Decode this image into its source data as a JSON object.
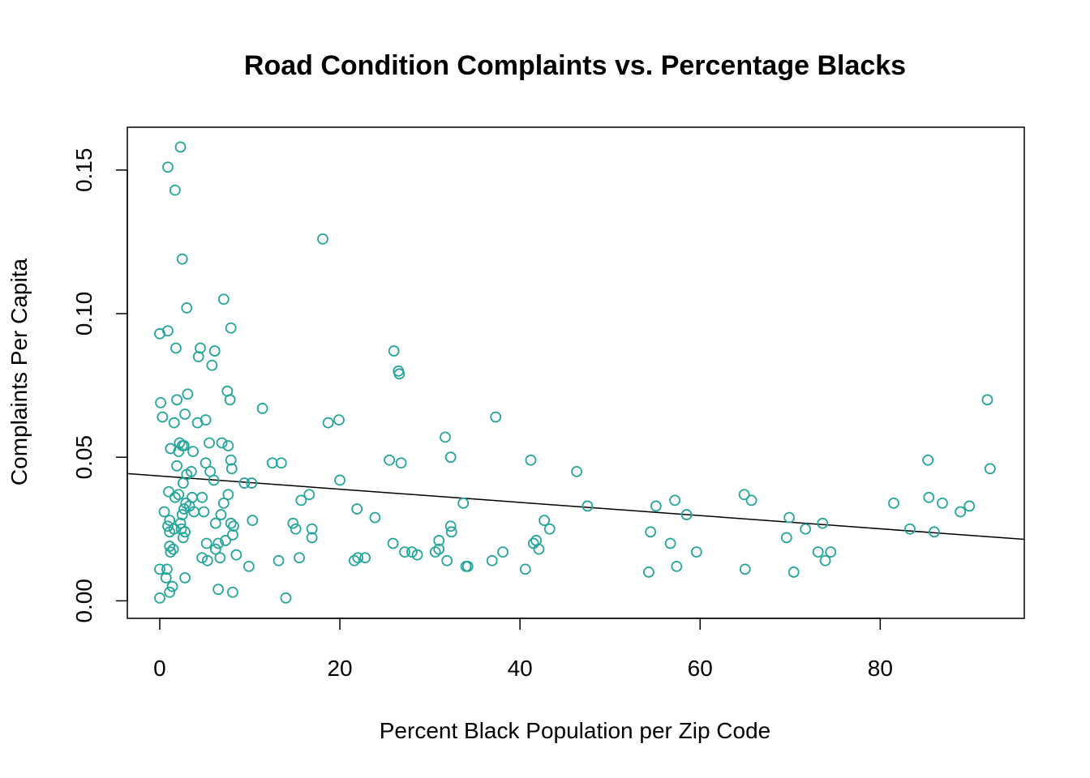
{
  "chart_data": {
    "type": "scatter",
    "title": "Road Condition Complaints vs. Percentage Blacks",
    "xlabel": "Percent Black Population per Zip Code",
    "ylabel": "Complaints Per Capita",
    "xlim": [
      -3.6,
      96.0
    ],
    "ylim": [
      -0.0061,
      0.1649
    ],
    "x_ticks": [
      0,
      20,
      40,
      60,
      80
    ],
    "x_tick_labels": [
      "0",
      "20",
      "40",
      "60",
      "80"
    ],
    "y_ticks": [
      0.0,
      0.05,
      0.1,
      0.15
    ],
    "y_tick_labels": [
      "0.00",
      "0.05",
      "0.10",
      "0.15"
    ],
    "point_color": "#26a69a",
    "line_color": "#000000",
    "grid": false,
    "regression_line": {
      "x": [
        -3.6,
        96.0
      ],
      "y": [
        0.0443,
        0.0214
      ]
    },
    "points": [
      [
        2.3,
        0.158
      ],
      [
        0.9,
        0.151
      ],
      [
        1.7,
        0.143
      ],
      [
        2.5,
        0.119
      ],
      [
        3.0,
        0.102
      ],
      [
        0.0,
        0.093
      ],
      [
        0.9,
        0.094
      ],
      [
        1.8,
        0.088
      ],
      [
        0.1,
        0.069
      ],
      [
        0.3,
        0.064
      ],
      [
        1.9,
        0.07
      ],
      [
        3.1,
        0.072
      ],
      [
        2.8,
        0.065
      ],
      [
        1.6,
        0.062
      ],
      [
        2.2,
        0.055
      ],
      [
        2.5,
        0.054
      ],
      [
        1.2,
        0.053
      ],
      [
        2.1,
        0.052
      ],
      [
        2.7,
        0.054
      ],
      [
        1.9,
        0.047
      ],
      [
        3.0,
        0.044
      ],
      [
        2.6,
        0.041
      ],
      [
        1.0,
        0.038
      ],
      [
        1.7,
        0.036
      ],
      [
        2.1,
        0.037
      ],
      [
        2.9,
        0.034
      ],
      [
        2.7,
        0.032
      ],
      [
        2.5,
        0.03
      ],
      [
        2.3,
        0.027
      ],
      [
        2.4,
        0.025
      ],
      [
        2.8,
        0.024
      ],
      [
        2.6,
        0.022
      ],
      [
        0.5,
        0.031
      ],
      [
        1.1,
        0.028
      ],
      [
        0.9,
        0.026
      ],
      [
        1.1,
        0.024
      ],
      [
        1.6,
        0.025
      ],
      [
        1.5,
        0.018
      ],
      [
        1.2,
        0.017
      ],
      [
        1.1,
        0.019
      ],
      [
        0.0,
        0.011
      ],
      [
        0.8,
        0.011
      ],
      [
        0.7,
        0.008
      ],
      [
        1.4,
        0.005
      ],
      [
        1.1,
        0.003
      ],
      [
        0.0,
        0.001
      ],
      [
        2.8,
        0.008
      ],
      [
        3.3,
        0.033
      ],
      [
        3.6,
        0.036
      ],
      [
        3.8,
        0.031
      ],
      [
        3.5,
        0.045
      ],
      [
        3.7,
        0.052
      ],
      [
        4.2,
        0.062
      ],
      [
        4.3,
        0.085
      ],
      [
        4.5,
        0.088
      ],
      [
        4.7,
        0.036
      ],
      [
        5.1,
        0.063
      ],
      [
        5.5,
        0.055
      ],
      [
        5.6,
        0.045
      ],
      [
        5.1,
        0.048
      ],
      [
        6.0,
        0.042
      ],
      [
        5.8,
        0.082
      ],
      [
        6.1,
        0.087
      ],
      [
        6.9,
        0.055
      ],
      [
        7.1,
        0.105
      ],
      [
        7.5,
        0.073
      ],
      [
        7.8,
        0.07
      ],
      [
        7.9,
        0.095
      ],
      [
        7.6,
        0.054
      ],
      [
        7.9,
        0.049
      ],
      [
        8.0,
        0.046
      ],
      [
        7.6,
        0.037
      ],
      [
        7.1,
        0.034
      ],
      [
        6.8,
        0.03
      ],
      [
        6.2,
        0.027
      ],
      [
        4.9,
        0.031
      ],
      [
        4.7,
        0.015
      ],
      [
        5.3,
        0.014
      ],
      [
        6.2,
        0.018
      ],
      [
        6.5,
        0.02
      ],
      [
        5.2,
        0.02
      ],
      [
        6.7,
        0.015
      ],
      [
        7.3,
        0.021
      ],
      [
        7.9,
        0.027
      ],
      [
        8.1,
        0.023
      ],
      [
        8.2,
        0.026
      ],
      [
        8.5,
        0.016
      ],
      [
        6.5,
        0.004
      ],
      [
        8.1,
        0.003
      ],
      [
        9.4,
        0.041
      ],
      [
        10.2,
        0.041
      ],
      [
        10.3,
        0.028
      ],
      [
        9.9,
        0.012
      ],
      [
        11.4,
        0.067
      ],
      [
        12.5,
        0.048
      ],
      [
        13.5,
        0.048
      ],
      [
        13.2,
        0.014
      ],
      [
        14.0,
        0.001
      ],
      [
        14.8,
        0.027
      ],
      [
        15.1,
        0.025
      ],
      [
        15.5,
        0.015
      ],
      [
        15.7,
        0.035
      ],
      [
        16.6,
        0.037
      ],
      [
        16.9,
        0.025
      ],
      [
        16.9,
        0.022
      ],
      [
        18.1,
        0.126
      ],
      [
        18.7,
        0.062
      ],
      [
        19.9,
        0.063
      ],
      [
        20.0,
        0.042
      ],
      [
        21.6,
        0.014
      ],
      [
        21.9,
        0.032
      ],
      [
        22.0,
        0.015
      ],
      [
        22.8,
        0.015
      ],
      [
        23.9,
        0.029
      ],
      [
        25.5,
        0.049
      ],
      [
        26.0,
        0.087
      ],
      [
        26.5,
        0.08
      ],
      [
        26.6,
        0.079
      ],
      [
        26.8,
        0.048
      ],
      [
        25.9,
        0.02
      ],
      [
        27.2,
        0.017
      ],
      [
        28.0,
        0.017
      ],
      [
        28.6,
        0.016
      ],
      [
        30.6,
        0.017
      ],
      [
        31.0,
        0.018
      ],
      [
        31.0,
        0.021
      ],
      [
        31.7,
        0.057
      ],
      [
        32.3,
        0.05
      ],
      [
        32.3,
        0.026
      ],
      [
        32.4,
        0.024
      ],
      [
        31.9,
        0.014
      ],
      [
        33.7,
        0.034
      ],
      [
        34.0,
        0.012
      ],
      [
        34.2,
        0.012
      ],
      [
        36.9,
        0.014
      ],
      [
        37.3,
        0.064
      ],
      [
        38.1,
        0.017
      ],
      [
        40.6,
        0.011
      ],
      [
        41.2,
        0.049
      ],
      [
        41.5,
        0.02
      ],
      [
        41.8,
        0.021
      ],
      [
        42.1,
        0.018
      ],
      [
        42.7,
        0.028
      ],
      [
        43.3,
        0.025
      ],
      [
        46.3,
        0.045
      ],
      [
        47.5,
        0.033
      ],
      [
        54.3,
        0.01
      ],
      [
        54.5,
        0.024
      ],
      [
        55.1,
        0.033
      ],
      [
        56.7,
        0.02
      ],
      [
        57.2,
        0.035
      ],
      [
        57.4,
        0.012
      ],
      [
        58.5,
        0.03
      ],
      [
        59.6,
        0.017
      ],
      [
        64.9,
        0.037
      ],
      [
        65.0,
        0.011
      ],
      [
        65.7,
        0.035
      ],
      [
        69.6,
        0.022
      ],
      [
        69.9,
        0.029
      ],
      [
        70.4,
        0.01
      ],
      [
        71.7,
        0.025
      ],
      [
        73.1,
        0.017
      ],
      [
        73.6,
        0.027
      ],
      [
        73.9,
        0.014
      ],
      [
        74.5,
        0.017
      ],
      [
        81.5,
        0.034
      ],
      [
        83.3,
        0.025
      ],
      [
        85.3,
        0.049
      ],
      [
        85.4,
        0.036
      ],
      [
        86.0,
        0.024
      ],
      [
        86.9,
        0.034
      ],
      [
        88.9,
        0.031
      ],
      [
        89.9,
        0.033
      ],
      [
        91.9,
        0.07
      ],
      [
        92.2,
        0.046
      ]
    ]
  }
}
